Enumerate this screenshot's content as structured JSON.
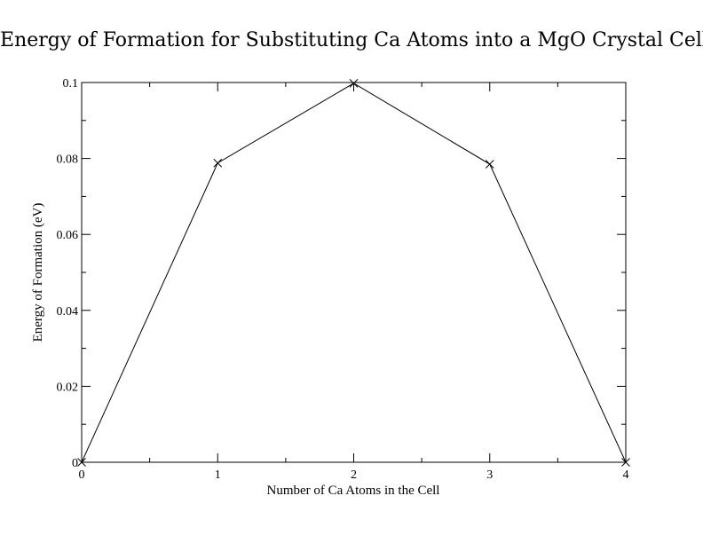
{
  "chart_data": {
    "type": "line",
    "title": "Energy of Formation for Substituting Ca Atoms into a MgO Crystal Cell",
    "xlabel": "Number of Ca Atoms in the Cell",
    "ylabel": "Energy of Formation (eV)",
    "x": [
      0,
      1,
      2,
      3,
      4
    ],
    "series": [
      {
        "values": [
          0,
          0.0788,
          0.0998,
          0.0785,
          0
        ]
      }
    ],
    "xlim": [
      0,
      4
    ],
    "ylim": [
      0,
      0.1
    ],
    "xticks": [
      0,
      1,
      2,
      3,
      4
    ],
    "xtick_labels": [
      "0",
      "1",
      "2",
      "3",
      "4"
    ],
    "yticks": [
      0,
      0.02,
      0.04,
      0.06,
      0.08,
      0.1
    ],
    "ytick_labels": [
      "0",
      "0.02",
      "0.04",
      "0.06",
      "0.08",
      "0.1"
    ],
    "marker": "x",
    "grid": false,
    "colors": {
      "line": "#000000",
      "frame": "#000000"
    }
  }
}
